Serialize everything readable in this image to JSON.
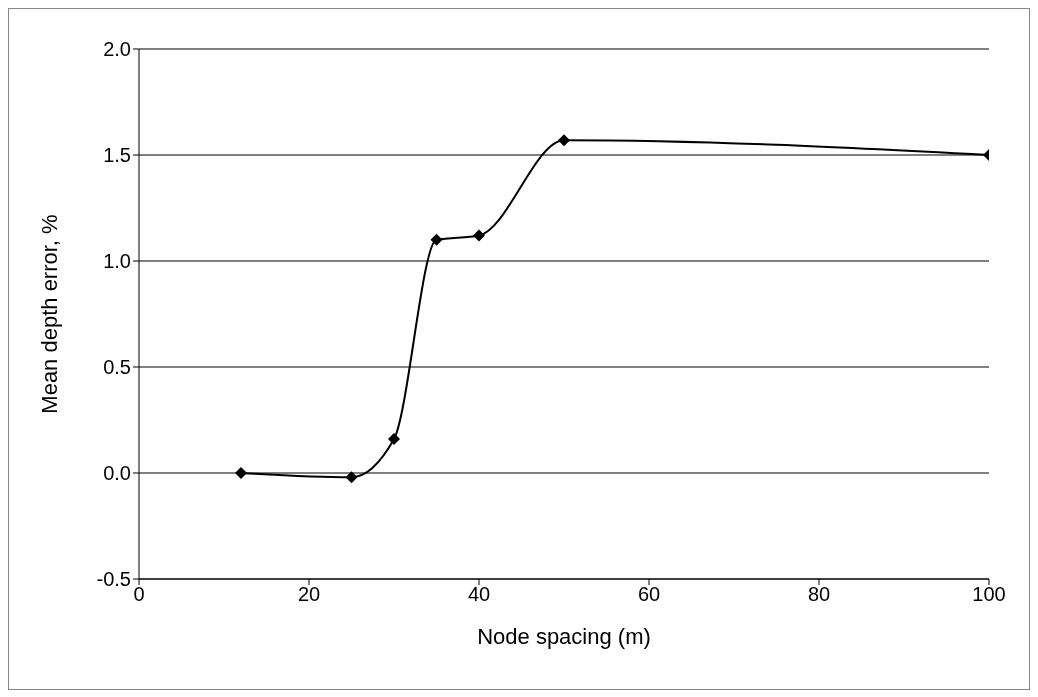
{
  "chart_data": {
    "type": "line",
    "xlabel": "Node spacing (m)",
    "ylabel": "Mean depth error, %",
    "x": [
      12,
      25,
      30,
      35,
      40,
      50,
      100
    ],
    "series": [
      {
        "color": "#000000",
        "values": [
          0.0,
          -0.02,
          0.16,
          1.1,
          1.12,
          1.57,
          1.5
        ]
      }
    ],
    "xlim": [
      0,
      100
    ],
    "xticks": [
      0,
      20,
      40,
      60,
      80,
      100
    ],
    "ylim": [
      -0.5,
      2.0
    ],
    "yticks": [
      {
        "value": -0.5,
        "label": "-0.5"
      },
      {
        "value": 0,
        "label": "0.0"
      },
      {
        "value": 0.5,
        "label": "0.5"
      },
      {
        "value": 1,
        "label": "1.0"
      },
      {
        "value": 1.5,
        "label": "1.5"
      },
      {
        "value": 2,
        "label": "2.0"
      }
    ],
    "grid": "y",
    "marker": "diamond",
    "line_style": "solid"
  }
}
